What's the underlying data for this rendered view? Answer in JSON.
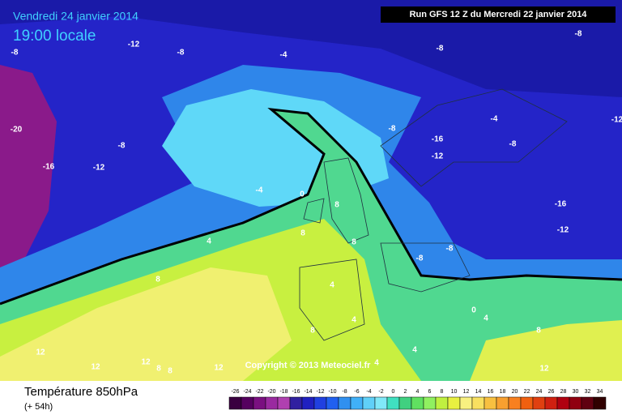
{
  "header": {
    "date": "Vendredi 24 janvier 2014",
    "time": "19:00 locale",
    "run": "Run GFS 12 Z du Mercredi 22 janvier 2014"
  },
  "copyright": "Copyright © 2013 Meteociel.fr",
  "footer": {
    "title": "Température 850hPa",
    "lead": "(+ 54h)"
  },
  "scale": {
    "ticks": [
      -26,
      -24,
      -22,
      -20,
      -18,
      -16,
      -14,
      -12,
      -10,
      -8,
      -6,
      -4,
      -2,
      0,
      2,
      4,
      6,
      8,
      10,
      12,
      14,
      16,
      18,
      20,
      22,
      24,
      26,
      28,
      30,
      32,
      34
    ],
    "colors": [
      "#3a0040",
      "#55005f",
      "#7a1080",
      "#9a2aa0",
      "#b040b0",
      "#3020a0",
      "#2020c0",
      "#2040e0",
      "#2060f0",
      "#3090f0",
      "#40b0f8",
      "#60d0f8",
      "#80e8f8",
      "#40e0c0",
      "#40d080",
      "#60e060",
      "#90f060",
      "#c0f040",
      "#e8f040",
      "#f8f080",
      "#f8e060",
      "#f8c040",
      "#f8a030",
      "#f88020",
      "#f06010",
      "#e04010",
      "#d02010",
      "#b00010",
      "#900010",
      "#600010",
      "#300000"
    ]
  },
  "map_labels": [
    -8,
    -12,
    -8,
    -4,
    -8,
    -8,
    -20,
    -8,
    -16,
    -12,
    -8,
    -16,
    -4,
    -8,
    -12,
    -12,
    -4,
    0,
    8,
    -16,
    -12,
    4,
    8,
    8,
    -8,
    -8,
    8,
    4,
    0,
    8,
    4,
    4,
    8,
    12,
    12,
    12,
    8,
    8,
    12,
    4,
    4,
    12
  ]
}
